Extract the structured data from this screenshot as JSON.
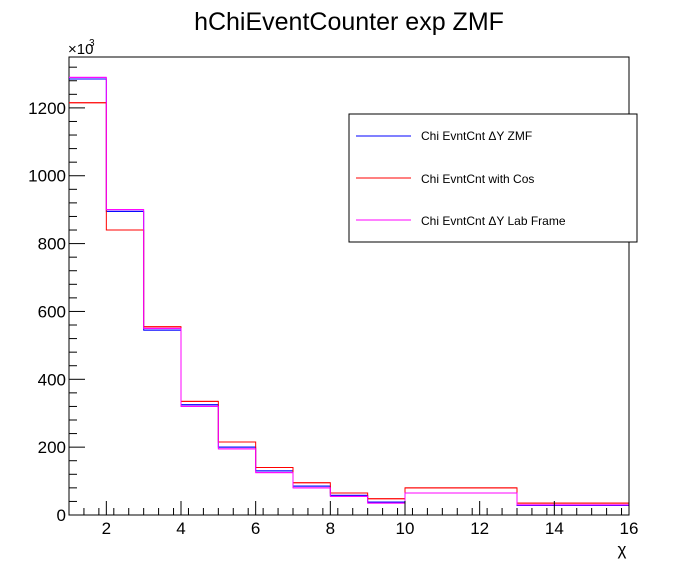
{
  "chart_data": {
    "type": "histogram",
    "title": "hChiEventCounter exp ZMF",
    "xlabel": "χ",
    "ylabel": "",
    "y_multiplier_label": "×10",
    "y_multiplier_exponent": "3",
    "xlim": [
      1,
      16
    ],
    "ylim": [
      0,
      1350
    ],
    "x_ticks": [
      2,
      4,
      6,
      8,
      10,
      12,
      14,
      16
    ],
    "y_ticks": [
      0,
      200,
      400,
      600,
      800,
      1000,
      1200
    ],
    "bin_edges": [
      1,
      2,
      3,
      4,
      5,
      6,
      7,
      8,
      9,
      10,
      13,
      16
    ],
    "series": [
      {
        "name": "Chi EvntCnt ΔY ZMF",
        "color": "#0000ff",
        "values": [
          1285,
          895,
          545,
          325,
          200,
          130,
          85,
          58,
          38,
          65,
          28
        ]
      },
      {
        "name": "Chi EvntCnt with Cos",
        "color": "#ff0000",
        "values": [
          1215,
          840,
          555,
          335,
          215,
          140,
          95,
          65,
          48,
          80,
          35
        ]
      },
      {
        "name": "Chi EvntCnt ΔY Lab Frame",
        "color": "#ff00ff",
        "values": [
          1290,
          900,
          550,
          320,
          195,
          125,
          80,
          55,
          35,
          65,
          30
        ]
      }
    ],
    "legend_position": "top-right",
    "grid": false
  }
}
